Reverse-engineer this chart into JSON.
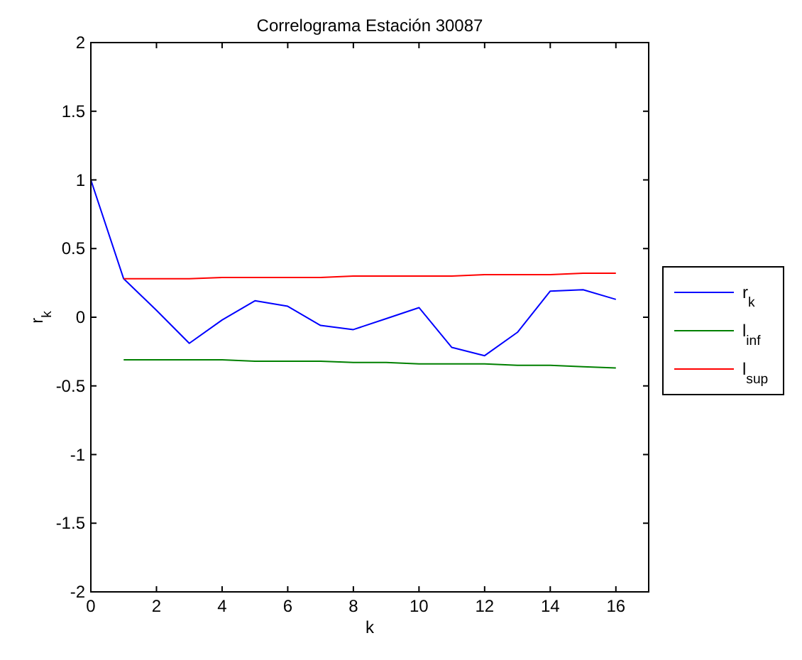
{
  "chart_data": {
    "type": "line",
    "title": "Correlograma Estación 30087",
    "xlabel": "k",
    "ylabel": "r$_{k}$",
    "xlim": [
      0,
      17
    ],
    "xticks": [
      0,
      2,
      4,
      6,
      8,
      10,
      12,
      14,
      16
    ],
    "ylim": [
      -2,
      2
    ],
    "yticks": [
      -2,
      -1.5,
      -1,
      -0.5,
      0,
      0.5,
      1,
      1.5,
      2
    ],
    "legend": "right",
    "grid": false,
    "series": [
      {
        "name": "r$_{k}$",
        "color": "#0000ff",
        "x": [
          0,
          1,
          2,
          3,
          4,
          5,
          6,
          7,
          8,
          9,
          10,
          11,
          12,
          13,
          14,
          15,
          16
        ],
        "values": [
          1,
          0.28,
          0.05,
          -0.19,
          -0.02,
          0.12,
          0.08,
          -0.06,
          -0.09,
          -0.01,
          0.07,
          -0.22,
          -0.28,
          -0.11,
          0.19,
          0.2,
          0.13
        ]
      },
      {
        "name": "l$_{inf}$",
        "color": "#008000",
        "x": [
          1,
          2,
          3,
          4,
          5,
          6,
          7,
          8,
          9,
          10,
          11,
          12,
          13,
          14,
          15,
          16
        ],
        "values": [
          -0.31,
          -0.31,
          -0.31,
          -0.31,
          -0.32,
          -0.32,
          -0.32,
          -0.33,
          -0.33,
          -0.34,
          -0.34,
          -0.34,
          -0.35,
          -0.35,
          -0.36,
          -0.37
        ]
      },
      {
        "name": "l$_{sup}$",
        "color": "#ff0000",
        "x": [
          1,
          2,
          3,
          4,
          5,
          6,
          7,
          8,
          9,
          10,
          11,
          12,
          13,
          14,
          15,
          16
        ],
        "values": [
          0.28,
          0.28,
          0.28,
          0.29,
          0.29,
          0.29,
          0.29,
          0.3,
          0.3,
          0.3,
          0.3,
          0.31,
          0.31,
          0.31,
          0.32,
          0.32
        ]
      }
    ]
  }
}
